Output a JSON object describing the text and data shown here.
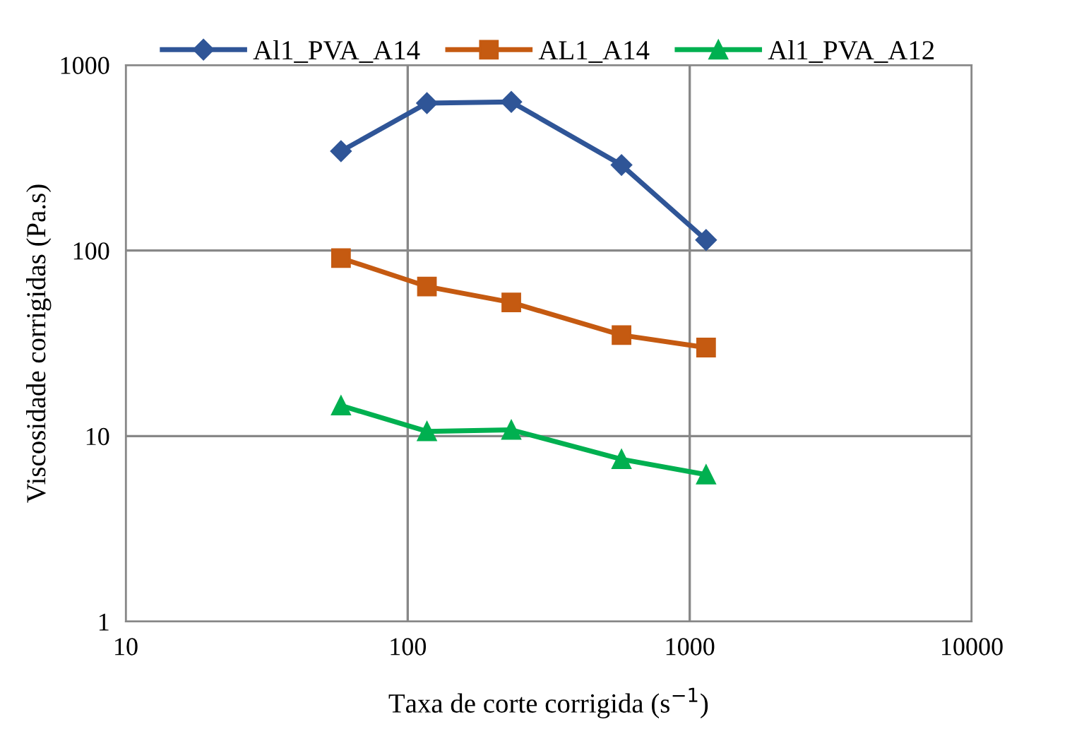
{
  "chart_data": {
    "type": "line",
    "xlabel": "Taxa de corte corrigida (s$^{−1}$)",
    "ylabel": "Viscosidade corrigidas (Pa.s)",
    "log": "xy",
    "xlim": [
      10,
      10000
    ],
    "ylim": [
      1,
      1000
    ],
    "xticks": [
      10,
      100,
      1000,
      10000
    ],
    "yticks": [
      1,
      10,
      100,
      1000
    ],
    "grid": true,
    "legend": "top",
    "series": [
      {
        "name": "Al1_PVA_A14",
        "color": "#2f5597",
        "marker": "diamond",
        "x": [
          58,
          117,
          233,
          573,
          1143
        ],
        "values": [
          343,
          623,
          633,
          289,
          114
        ]
      },
      {
        "name": "AL1_A14",
        "color": "#c55a11",
        "marker": "square",
        "x": [
          58,
          117,
          233,
          573,
          1143
        ],
        "values": [
          91,
          64,
          52.5,
          35,
          30
        ]
      },
      {
        "name": "Al1_PVA_A12",
        "color": "#00b050",
        "marker": "triangle",
        "x": [
          58,
          117,
          233,
          573,
          1143
        ],
        "values": [
          14.6,
          10.6,
          10.8,
          7.5,
          6.2
        ]
      }
    ]
  }
}
